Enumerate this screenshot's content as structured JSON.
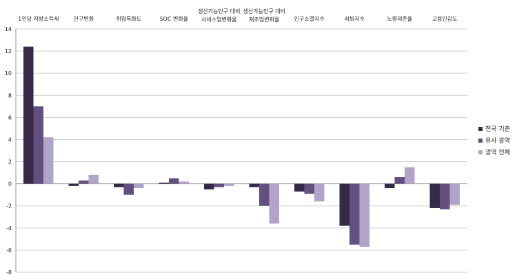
{
  "chart_data": {
    "type": "bar",
    "categories": [
      "1인당 지방소득세",
      "인구변화",
      "취업특화도",
      "SOC 변화율",
      "생산가능인구 대비 서비스업변화율",
      "생산가능인구 대비 제조업변화율",
      "인구소멸지수",
      "쇠퇴지수",
      "노령의존율",
      "고용민감도"
    ],
    "category_lines": [
      [
        "1인당 지방소득세"
      ],
      [
        "인구변화"
      ],
      [
        "취업특화도"
      ],
      [
        "SOC 변화율"
      ],
      [
        "생산가능인구 대비",
        "서비스업변화율"
      ],
      [
        "생산가능인구 대비",
        "제조업변화율"
      ],
      [
        "인구소멸지수"
      ],
      [
        "쇠퇴지수"
      ],
      [
        "노령의존율"
      ],
      [
        "고용민감도"
      ]
    ],
    "series": [
      {
        "name": "전국 기준",
        "color": "#352a47",
        "values": [
          12.4,
          -0.2,
          -0.3,
          0.1,
          -0.5,
          -0.3,
          -0.7,
          -3.8,
          -0.4,
          -2.2
        ]
      },
      {
        "name": "유사 광역",
        "color": "#64507f",
        "values": [
          7.0,
          0.3,
          -1.0,
          0.5,
          -0.3,
          -2.0,
          -0.9,
          -5.5,
          0.6,
          -2.3
        ]
      },
      {
        "name": "광역 전체",
        "color": "#b2a3c9",
        "values": [
          4.2,
          0.8,
          -0.4,
          0.2,
          -0.2,
          -3.6,
          -1.6,
          -5.7,
          1.5,
          -1.9
        ]
      }
    ],
    "ylim": [
      -8,
      14
    ],
    "yticks": [
      14,
      12,
      10,
      8,
      6,
      4,
      2,
      0,
      -2,
      -4,
      -6,
      -8
    ],
    "grid": true,
    "legend": "right"
  }
}
